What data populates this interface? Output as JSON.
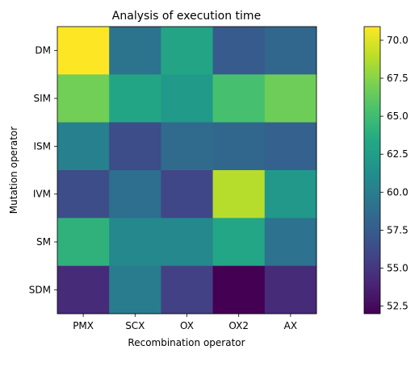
{
  "chart_data": {
    "type": "heatmap",
    "title": "Analysis of execution time",
    "xlabel": "Recombination operator",
    "ylabel": "Mutation operator",
    "x_categories": [
      "PMX",
      "SCX",
      "OX",
      "OX2",
      "AX"
    ],
    "y_categories": [
      "DM",
      "SIM",
      "ISM",
      "IVM",
      "SM",
      "SDM"
    ],
    "values": [
      [
        70.9,
        59.2,
        63.0,
        57.4,
        58.3
      ],
      [
        66.8,
        63.1,
        62.2,
        65.3,
        66.7
      ],
      [
        60.2,
        56.4,
        58.6,
        58.3,
        57.8
      ],
      [
        56.4,
        58.8,
        56.0,
        68.8,
        62.0
      ],
      [
        64.1,
        60.8,
        60.8,
        63.2,
        59.1
      ],
      [
        54.3,
        59.9,
        55.6,
        52.0,
        54.3
      ]
    ],
    "colorbar": {
      "min": 52.0,
      "max": 70.9,
      "ticks": [
        "52.5",
        "55.0",
        "57.5",
        "60.0",
        "62.5",
        "65.0",
        "67.5",
        "70.0"
      ],
      "colormap": "viridis"
    }
  }
}
